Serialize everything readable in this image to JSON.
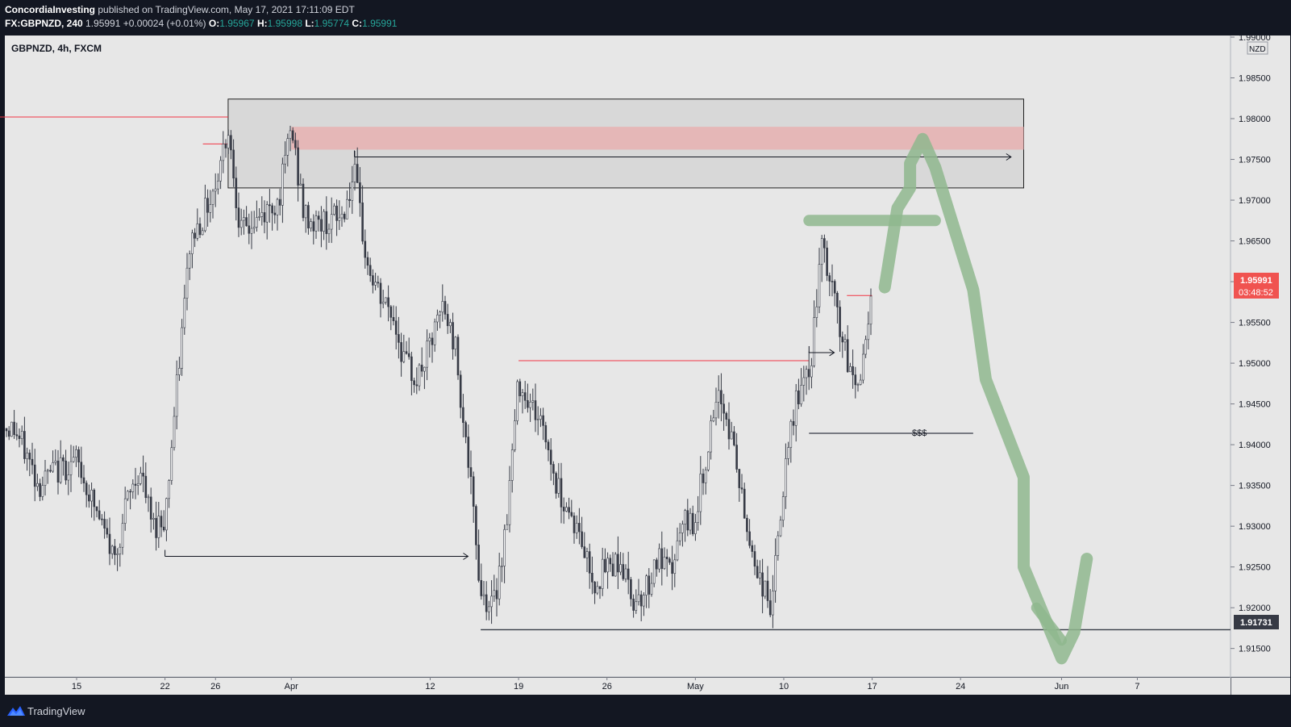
{
  "header": {
    "author": "ConcordiaInvesting",
    "published_text": " published on TradingView.com, May 17, 2021 17:11:09 EDT",
    "symbol_interval": "FX:GBPNZD, 240",
    "last_price": "1.95991",
    "change": "+0.00024 (+0.01%)",
    "o_label": "O:",
    "o_value": "1.95967",
    "h_label": "H:",
    "h_value": "1.95998",
    "l_label": "L:",
    "l_value": "1.95774",
    "c_label": "C:",
    "c_value": "1.95991"
  },
  "legend_title": "GBPNZD, 4h, FXCM",
  "currency": "NZD",
  "price_tag": {
    "price": "1.95991",
    "countdown": "03:48:52"
  },
  "level_tag": "1.91731",
  "annotation": "$$$",
  "footer": {
    "brand": "TradingView"
  },
  "colors": {
    "background": "#e7e7e7",
    "price_tag": "#f05350",
    "level_tag": "#363a45",
    "drawing": "#8fb78e",
    "zone": "#d8d8d8",
    "zone_red": "#e5b7b7"
  },
  "chart_data": {
    "type": "candlestick",
    "title": "GBPNZD, 4h, FXCM",
    "ylim": [
      1.9118,
      1.99
    ],
    "y_ticks": [
      "1.99000",
      "1.98500",
      "1.98000",
      "1.97500",
      "1.97000",
      "1.96500",
      "1.96000",
      "1.95500",
      "1.95000",
      "1.94500",
      "1.94000",
      "1.93500",
      "1.93000",
      "1.92500",
      "1.92000",
      "1.91500"
    ],
    "x_ticks": [
      {
        "label": "15",
        "date": "2021-03-15"
      },
      {
        "label": "22",
        "date": "2021-03-22"
      },
      {
        "label": "26",
        "date": "2021-03-26"
      },
      {
        "label": "Apr",
        "date": "2021-04-01"
      },
      {
        "label": "12",
        "date": "2021-04-12"
      },
      {
        "label": "19",
        "date": "2021-04-19"
      },
      {
        "label": "26",
        "date": "2021-04-26"
      },
      {
        "label": "May",
        "date": "2021-05-03"
      },
      {
        "label": "10",
        "date": "2021-05-10"
      },
      {
        "label": "17",
        "date": "2021-05-17"
      },
      {
        "label": "24",
        "date": "2021-05-24"
      },
      {
        "label": "Jun",
        "date": "2021-06-01"
      },
      {
        "label": "7",
        "date": "2021-06-07"
      }
    ],
    "close_path": [
      [
        "2021-03-10",
        1.942
      ],
      [
        "2021-03-11",
        1.939
      ],
      [
        "2021-03-12",
        1.935
      ],
      [
        "2021-03-13",
        1.9365
      ],
      [
        "2021-03-15",
        1.938
      ],
      [
        "2021-03-16",
        1.934
      ],
      [
        "2021-03-17",
        1.93
      ],
      [
        "2021-03-18",
        1.926
      ],
      [
        "2021-03-19",
        1.933
      ],
      [
        "2021-03-20",
        1.937
      ],
      [
        "2021-03-21",
        1.93
      ],
      [
        "2021-03-22",
        1.931
      ],
      [
        "2021-03-23",
        1.948
      ],
      [
        "2021-03-24",
        1.965
      ],
      [
        "2021-03-25",
        1.968
      ],
      [
        "2021-03-26",
        1.972
      ],
      [
        "2021-03-27",
        1.979
      ],
      [
        "2021-03-28",
        1.966
      ],
      [
        "2021-03-29",
        1.967
      ],
      [
        "2021-03-31",
        1.97
      ],
      [
        "2021-04-01",
        1.979
      ],
      [
        "2021-04-02",
        1.968
      ],
      [
        "2021-04-03",
        1.967
      ],
      [
        "2021-04-05",
        1.968
      ],
      [
        "2021-04-06",
        1.973
      ],
      [
        "2021-04-07",
        1.962
      ],
      [
        "2021-04-08",
        1.958
      ],
      [
        "2021-04-09",
        1.956
      ],
      [
        "2021-04-10",
        1.95
      ],
      [
        "2021-04-11",
        1.948
      ],
      [
        "2021-04-12",
        1.952
      ],
      [
        "2021-04-13",
        1.957
      ],
      [
        "2021-04-14",
        1.952
      ],
      [
        "2021-04-15",
        1.938
      ],
      [
        "2021-04-16",
        1.922
      ],
      [
        "2021-04-17",
        1.92
      ],
      [
        "2021-04-18",
        1.93
      ],
      [
        "2021-04-19",
        1.948
      ],
      [
        "2021-04-20",
        1.945
      ],
      [
        "2021-04-21",
        1.942
      ],
      [
        "2021-04-22",
        1.935
      ],
      [
        "2021-04-23",
        1.932
      ],
      [
        "2021-04-24",
        1.928
      ],
      [
        "2021-04-25",
        1.923
      ],
      [
        "2021-04-26",
        1.925
      ],
      [
        "2021-04-27",
        1.926
      ],
      [
        "2021-04-28",
        1.921
      ],
      [
        "2021-04-29",
        1.922
      ],
      [
        "2021-04-30",
        1.926
      ],
      [
        "2021-05-01",
        1.924
      ],
      [
        "2021-05-02",
        1.93
      ],
      [
        "2021-05-03",
        1.931
      ],
      [
        "2021-05-04",
        1.94
      ],
      [
        "2021-05-05",
        1.946
      ],
      [
        "2021-05-06",
        1.94
      ],
      [
        "2021-05-07",
        1.93
      ],
      [
        "2021-05-08",
        1.924
      ],
      [
        "2021-05-09",
        1.92
      ],
      [
        "2021-05-10",
        1.935
      ],
      [
        "2021-05-11",
        1.946
      ],
      [
        "2021-05-12",
        1.948
      ],
      [
        "2021-05-13",
        1.964
      ],
      [
        "2021-05-14",
        1.958
      ],
      [
        "2021-05-15",
        1.95
      ],
      [
        "2021-05-16",
        1.947
      ],
      [
        "2021-05-17",
        1.9599
      ]
    ],
    "levels": [
      {
        "y": 1.9802,
        "from": "2021-03-06",
        "to": "2021-03-27",
        "color": "#f23645"
      },
      {
        "y": 1.9769,
        "from": "2021-03-25",
        "to": "2021-03-27",
        "color": "#f23645"
      },
      {
        "y": 1.9503,
        "from": "2021-04-19",
        "to": "2021-05-12",
        "color": "#f23645"
      },
      {
        "y": 1.9583,
        "from": "2021-05-15",
        "to": "2021-05-17",
        "color": "#f23645"
      },
      {
        "y": 1.9173,
        "from": "2021-04-16",
        "to": "2021-06-17",
        "color": "#363a45"
      },
      {
        "y": 1.9414,
        "from": "2021-05-12",
        "to": "2021-05-25",
        "color": "#363a45"
      }
    ],
    "zones": [
      {
        "from": "2021-03-27",
        "to": "2021-05-29",
        "y1": 1.9824,
        "y2": 1.9715,
        "fill": "#d8d8d8",
        "stroke": "#222222"
      },
      {
        "from": "2021-04-01",
        "to": "2021-05-29",
        "y1": 1.979,
        "y2": 1.9762,
        "fill": "#e5b7b7",
        "stroke": ""
      }
    ],
    "arrows": [
      {
        "from": "2021-03-22",
        "y": 1.9263,
        "to": "2021-04-15",
        "ty": 1.9263
      },
      {
        "from": "2021-04-06",
        "y": 1.9753,
        "to": "2021-05-28",
        "ty": 1.9753
      },
      {
        "from": "2021-05-12",
        "y": 1.9513,
        "to": "2021-05-14",
        "ty": 1.9513
      }
    ],
    "drawing": [
      [
        "2021-05-18",
        1.9593
      ],
      [
        "2021-05-19",
        1.969
      ],
      [
        "2021-05-20",
        1.9715
      ],
      [
        "2021-05-20",
        1.9745
      ],
      [
        "2021-05-21",
        1.9775
      ],
      [
        "2021-05-22",
        1.974
      ],
      [
        "2021-05-25",
        1.959
      ],
      [
        "2021-05-26",
        1.948
      ],
      [
        "2021-05-28",
        1.94
      ],
      [
        "2021-05-29",
        1.936
      ],
      [
        "2021-05-29",
        1.925
      ],
      [
        "2021-06-01",
        1.9138
      ],
      [
        "2021-06-02",
        1.917
      ],
      [
        "2021-06-03",
        1.926
      ]
    ],
    "drawing_bar": [
      [
        "2021-05-12",
        1.9675
      ],
      [
        "2021-05-22",
        1.9675
      ]
    ],
    "drawing_tick": [
      [
        "2021-05-30",
        1.92
      ],
      [
        "2021-06-01",
        1.916
      ]
    ]
  }
}
